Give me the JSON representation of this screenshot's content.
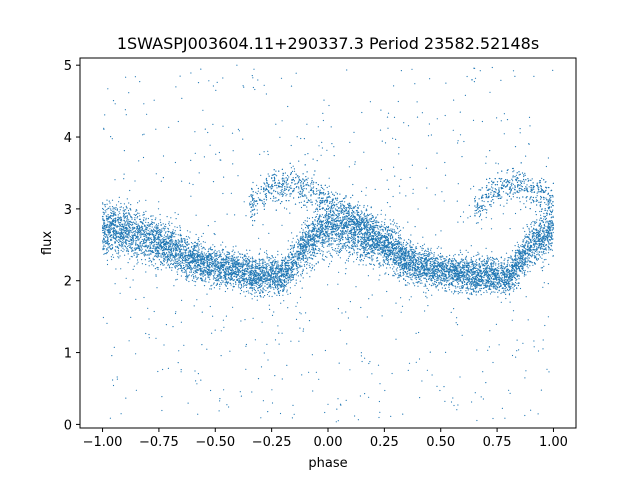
{
  "chart_data": {
    "type": "scatter",
    "title": "1SWASPJ003604.11+290337.3 Period 23582.52148s",
    "xlabel": "phase",
    "ylabel": "flux",
    "xlim": [
      -1.1,
      1.1
    ],
    "ylim": [
      -0.05,
      5.1
    ],
    "x_ticks": [
      -1.0,
      -0.75,
      -0.5,
      -0.25,
      0.0,
      0.25,
      0.5,
      0.75,
      1.0
    ],
    "x_tick_labels": [
      "−1.00",
      "−0.75",
      "−0.50",
      "−0.25",
      "0.00",
      "0.25",
      "0.50",
      "0.75",
      "1.00"
    ],
    "y_ticks": [
      0,
      1,
      2,
      3,
      4,
      5
    ],
    "y_tick_labels": [
      "0",
      "1",
      "2",
      "3",
      "4",
      "5"
    ],
    "grid": false,
    "legend": "none",
    "point_color": "#1f77b4",
    "series": [
      {
        "phase_range": [
          -1.0,
          1.0
        ],
        "x": [
          -1.0,
          -0.9,
          -0.8,
          -0.7,
          -0.6,
          -0.5,
          -0.4,
          -0.35,
          -0.3,
          -0.25,
          -0.2,
          -0.1,
          0.0,
          0.1,
          0.2,
          0.3,
          0.35,
          0.4,
          0.5,
          0.6,
          0.65,
          0.7,
          0.8,
          0.9,
          1.0
        ],
        "y_center": [
          2.75,
          2.7,
          2.6,
          2.45,
          2.3,
          2.2,
          2.15,
          2.1,
          2.05,
          2.1,
          2.05,
          2.5,
          2.75,
          2.7,
          2.6,
          2.45,
          2.3,
          2.2,
          2.15,
          2.1,
          2.05,
          2.1,
          2.05,
          2.5,
          2.75
        ],
        "y_spread": [
          0.5,
          0.5,
          0.5,
          0.45,
          0.4,
          0.35,
          0.35,
          0.35,
          0.35,
          0.35,
          0.35,
          0.45,
          0.5,
          0.5,
          0.5,
          0.45,
          0.4,
          0.35,
          0.35,
          0.35,
          0.35,
          0.35,
          0.35,
          0.45,
          0.5
        ],
        "upper_branch_x": [
          -0.35,
          -0.25,
          -0.15,
          -0.05,
          0.05,
          0.15,
          0.25,
          0.35
        ],
        "upper_branch_y": [
          3.0,
          3.3,
          3.35,
          3.2,
          3.0,
          2.8,
          2.5,
          2.2
        ]
      }
    ]
  }
}
